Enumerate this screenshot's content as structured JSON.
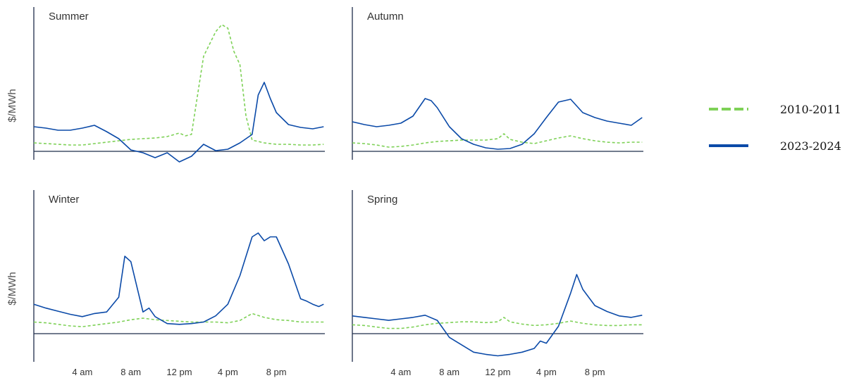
{
  "y_axis_label": "$/MWh",
  "x_ticks": [
    "4 am",
    "8 am",
    "12 pm",
    "4 pm",
    "8 pm"
  ],
  "legend": [
    {
      "label": "2010-2011",
      "color": "#7ED157",
      "style": "dashed"
    },
    {
      "label": "2023-2024",
      "color": "#0B4AA8",
      "style": "solid"
    }
  ],
  "chart_data": [
    {
      "type": "line",
      "title": "Summer",
      "ylabel": "$/MWh",
      "x_unit": "hour of day",
      "x_ticks": [
        4,
        8,
        12,
        16,
        20
      ],
      "series": [
        {
          "name": "2010-2011",
          "color": "#7ED157",
          "style": "dashed",
          "x": [
            0,
            1,
            2,
            3,
            4,
            5,
            6,
            7,
            8,
            9,
            10,
            11,
            12,
            12.5,
            13,
            14,
            15,
            15.5,
            16,
            16.5,
            17,
            17.5,
            18,
            18.5,
            19,
            19.5,
            20,
            21,
            22,
            23,
            23.9
          ],
          "values": [
            12,
            11,
            10,
            9,
            9,
            11,
            13,
            15,
            17,
            18,
            19,
            21,
            26,
            22,
            24,
            135,
            170,
            180,
            175,
            142,
            123,
            50,
            16,
            14,
            12,
            11,
            10,
            10,
            9,
            9,
            10
          ]
        },
        {
          "name": "2023-2024",
          "color": "#0B4AA8",
          "style": "solid",
          "x": [
            0,
            1,
            2,
            3,
            4,
            5,
            6,
            7,
            8,
            9,
            10,
            11,
            12,
            13,
            14,
            15,
            16,
            17,
            18,
            18.5,
            19,
            19.5,
            20,
            21,
            22,
            23,
            23.9
          ],
          "values": [
            35,
            33,
            30,
            30,
            33,
            37,
            28,
            18,
            2,
            -2,
            -9,
            -2,
            -15,
            -7,
            10,
            1,
            3,
            12,
            24,
            80,
            98,
            75,
            55,
            38,
            34,
            32,
            35
          ]
        }
      ]
    },
    {
      "type": "line",
      "title": "Autumn",
      "ylabel": "",
      "x_unit": "hour of day",
      "x_ticks": [
        4,
        8,
        12,
        16,
        20
      ],
      "series": [
        {
          "name": "2010-2011",
          "color": "#7ED157",
          "style": "dashed",
          "x": [
            0,
            1,
            2,
            3,
            4,
            5,
            6,
            7,
            8,
            9,
            10,
            11,
            12,
            12.5,
            13,
            14,
            15,
            16,
            17,
            18,
            19,
            20,
            21,
            22,
            23,
            23.9
          ],
          "values": [
            12,
            11,
            9,
            6,
            7,
            9,
            12,
            14,
            15,
            16,
            16,
            16,
            18,
            25,
            17,
            13,
            11,
            15,
            19,
            22,
            18,
            15,
            13,
            12,
            13,
            13
          ],
          "note": ""
        },
        {
          "name": "2023-2024",
          "color": "#0B4AA8",
          "style": "solid",
          "x": [
            0,
            1,
            2,
            3,
            4,
            5,
            6,
            6.5,
            7,
            8,
            9,
            10,
            11,
            12,
            13,
            14,
            15,
            16,
            17,
            18,
            19,
            20,
            21,
            22,
            23,
            23.9
          ],
          "values": [
            42,
            38,
            35,
            37,
            40,
            50,
            75,
            72,
            62,
            35,
            18,
            10,
            5,
            3,
            4,
            10,
            25,
            48,
            70,
            74,
            55,
            48,
            43,
            40,
            37,
            48
          ]
        }
      ]
    },
    {
      "type": "line",
      "title": "Winter",
      "ylabel": "$/MWh",
      "x_unit": "hour of day",
      "x_ticks": [
        4,
        8,
        12,
        16,
        20
      ],
      "series": [
        {
          "name": "2010-2011",
          "color": "#7ED157",
          "style": "dashed",
          "x": [
            0,
            1,
            2,
            3,
            4,
            5,
            6,
            7,
            8,
            9,
            10,
            11,
            12,
            13,
            14,
            15,
            16,
            17,
            18,
            19,
            20,
            21,
            22,
            23,
            23.9
          ],
          "values": [
            15,
            14,
            12,
            10,
            9,
            11,
            13,
            15,
            18,
            20,
            18,
            17,
            16,
            15,
            15,
            15,
            14,
            17,
            26,
            21,
            18,
            17,
            15,
            15,
            15
          ]
        },
        {
          "name": "2023-2024",
          "color": "#0B4AA8",
          "style": "solid",
          "x": [
            0,
            1,
            2,
            3,
            4,
            5,
            6,
            7,
            7.5,
            8,
            9,
            9.5,
            10,
            11,
            12,
            13,
            14,
            15,
            16,
            17,
            18,
            18.5,
            19,
            19.5,
            20,
            21,
            22,
            22.5,
            23,
            23.5,
            23.9
          ],
          "values": [
            38,
            33,
            29,
            25,
            22,
            26,
            28,
            47,
            100,
            93,
            28,
            33,
            22,
            13,
            12,
            13,
            15,
            23,
            38,
            75,
            125,
            130,
            120,
            125,
            125,
            90,
            45,
            42,
            38,
            35,
            38
          ]
        }
      ]
    },
    {
      "type": "line",
      "title": "Spring",
      "ylabel": "",
      "x_unit": "hour of day",
      "x_ticks": [
        4,
        8,
        12,
        16,
        20
      ],
      "series": [
        {
          "name": "2010-2011",
          "color": "#7ED157",
          "style": "dashed",
          "x": [
            0,
            1,
            2,
            3,
            4,
            5,
            6,
            7,
            8,
            9,
            10,
            11,
            12,
            12.5,
            13,
            14,
            15,
            16,
            17,
            18,
            19,
            20,
            21,
            22,
            23,
            23.9
          ],
          "values": [
            12,
            11,
            9,
            7,
            7,
            9,
            12,
            14,
            15,
            16,
            16,
            15,
            16,
            22,
            16,
            13,
            11,
            12,
            14,
            17,
            14,
            12,
            11,
            11,
            12,
            12
          ]
        },
        {
          "name": "2023-2024",
          "color": "#0B4AA8",
          "style": "solid",
          "x": [
            0,
            1,
            2,
            3,
            4,
            5,
            6,
            7,
            8,
            9,
            10,
            11,
            12,
            13,
            14,
            15,
            15.5,
            16,
            17,
            18,
            18.5,
            19,
            20,
            21,
            22,
            23,
            23.9
          ],
          "values": [
            24,
            22,
            20,
            18,
            20,
            22,
            25,
            18,
            -5,
            -15,
            -25,
            -28,
            -30,
            -28,
            -25,
            -20,
            -10,
            -13,
            10,
            55,
            80,
            60,
            38,
            30,
            24,
            22,
            25
          ]
        }
      ]
    }
  ]
}
